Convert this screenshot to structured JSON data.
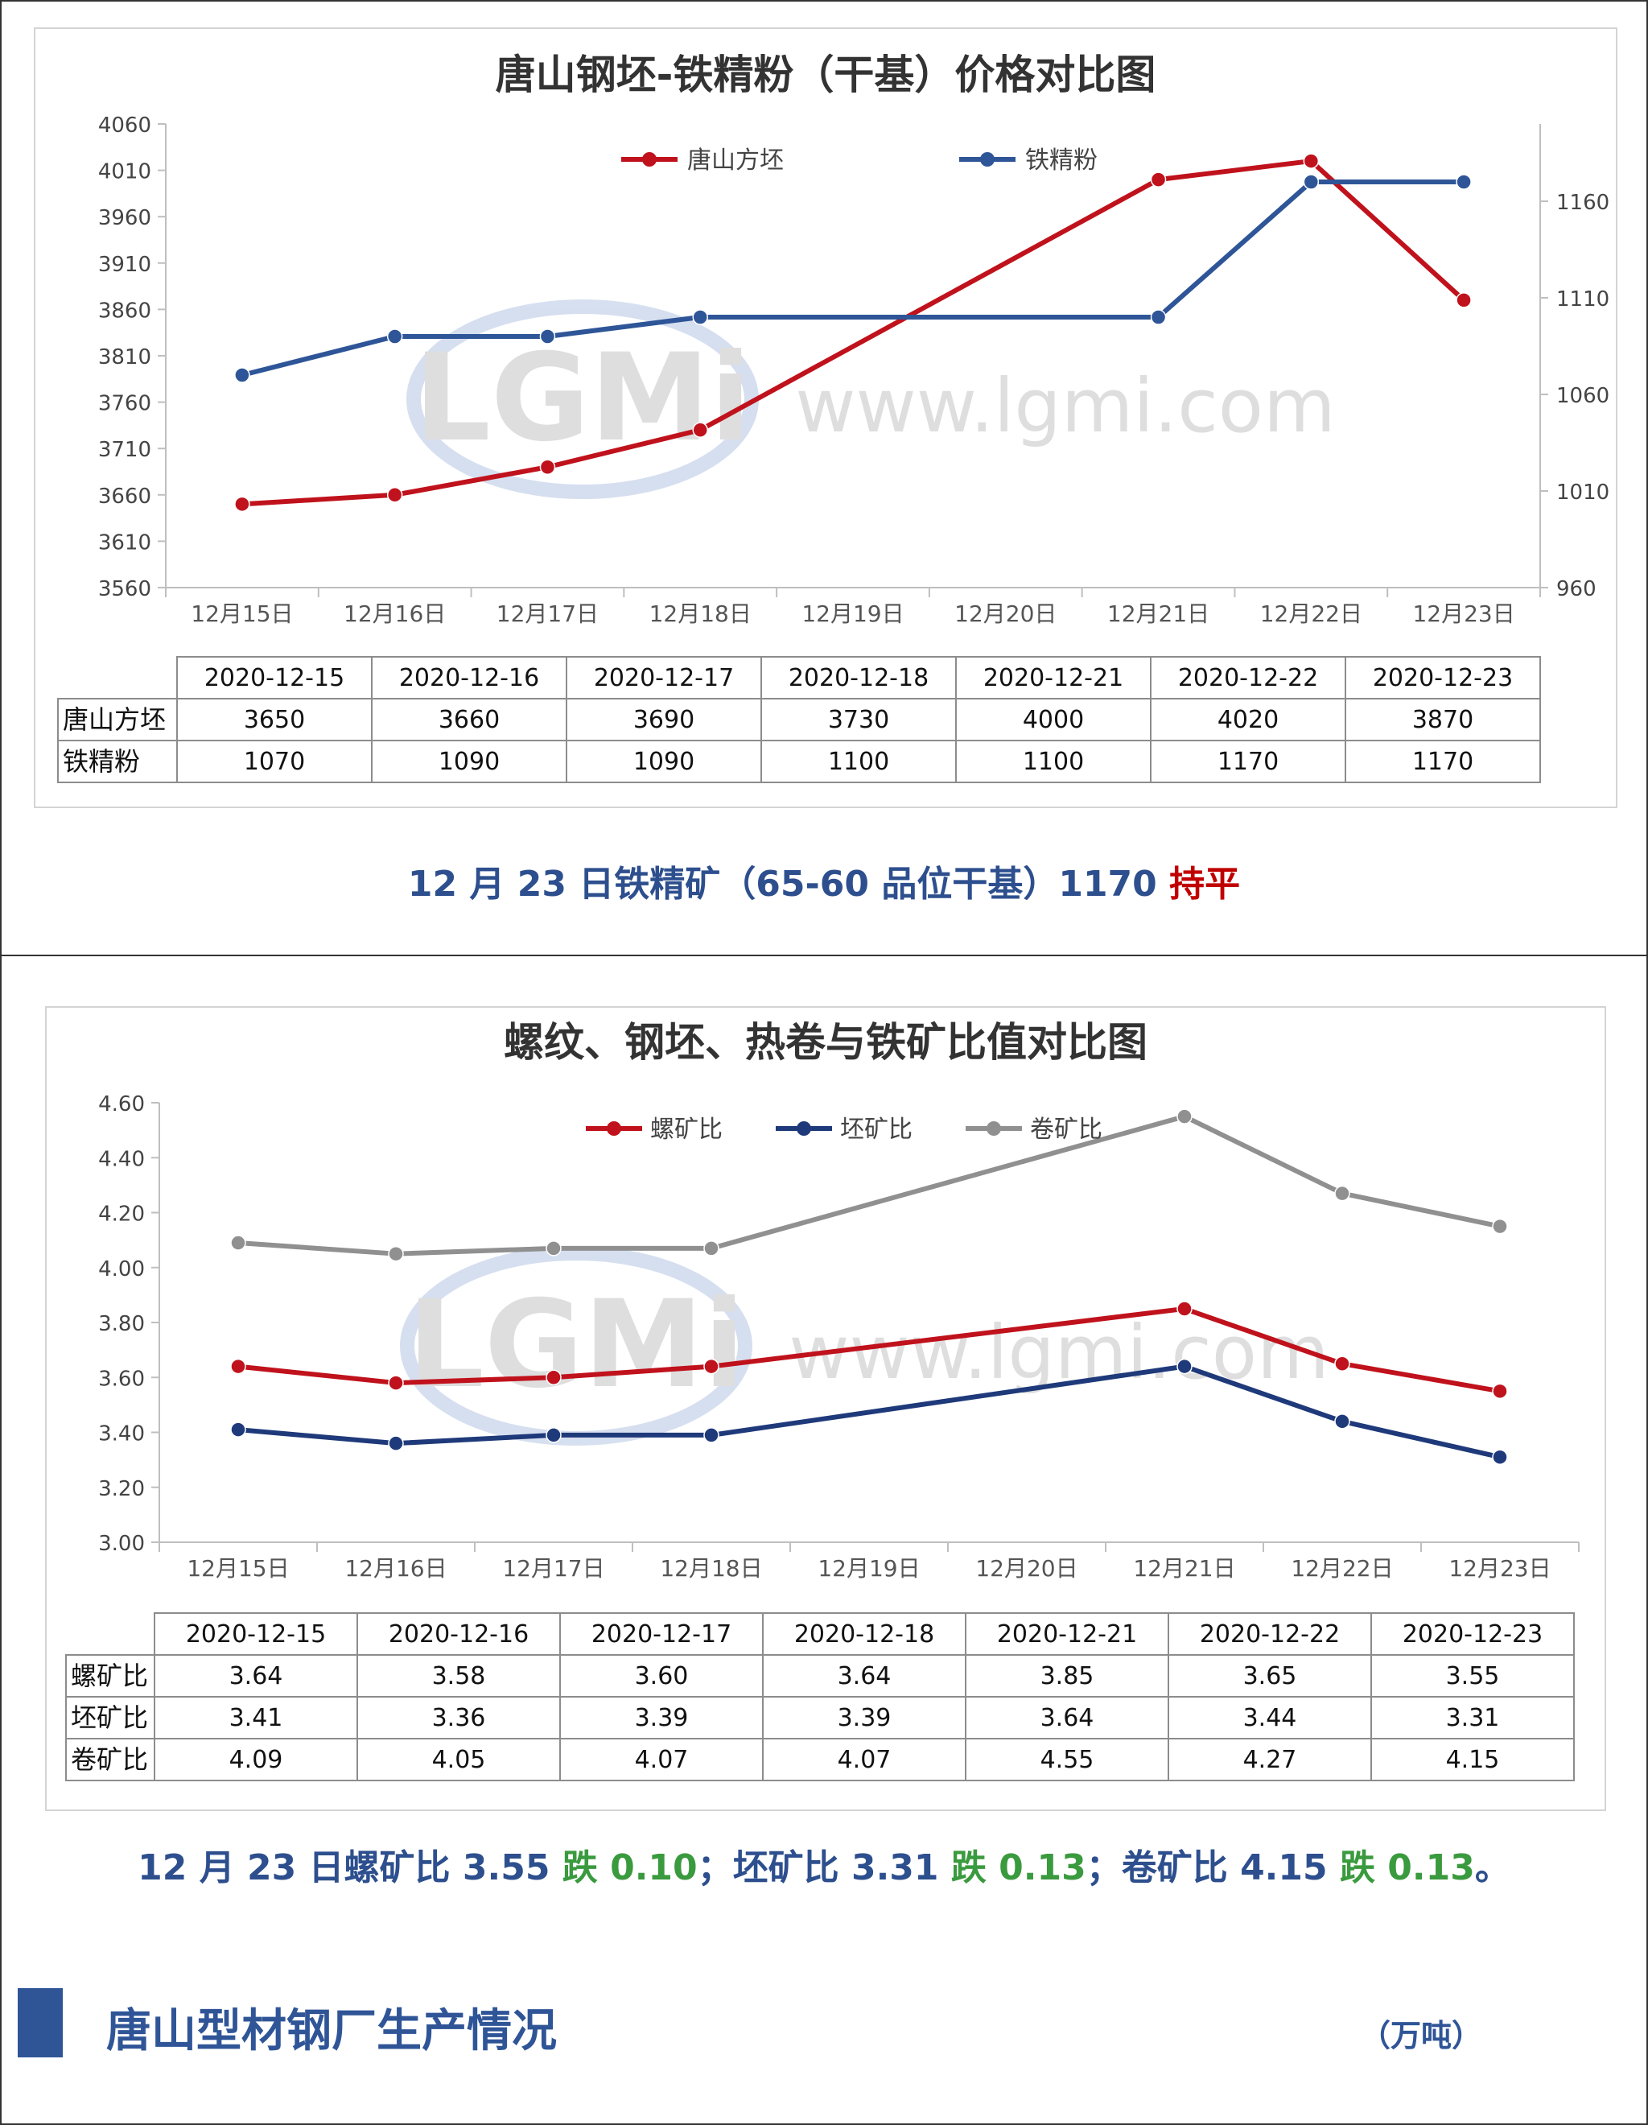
{
  "chart_data": [
    {
      "type": "line",
      "title": "唐山钢坯-铁精粉（干基）价格对比图",
      "categories": [
        "12月15日",
        "12月16日",
        "12月17日",
        "12月18日",
        "12月19日",
        "12月20日",
        "12月21日",
        "12月22日",
        "12月23日"
      ],
      "series": [
        {
          "name": "唐山方坯",
          "axis": "left",
          "color": "#c0121c",
          "points": [
            [
              0,
              3650
            ],
            [
              1,
              3660
            ],
            [
              2,
              3690
            ],
            [
              3,
              3730
            ],
            [
              6,
              4000
            ],
            [
              7,
              4020
            ],
            [
              8,
              3870
            ]
          ]
        },
        {
          "name": "铁精粉",
          "axis": "right",
          "color": "#2e5597",
          "points": [
            [
              0,
              1070
            ],
            [
              1,
              1090
            ],
            [
              2,
              1090
            ],
            [
              3,
              1100
            ],
            [
              6,
              1100
            ],
            [
              7,
              1170
            ],
            [
              8,
              1170
            ]
          ]
        }
      ],
      "y_left": {
        "min": 3560,
        "max": 4060,
        "ticks": [
          4060,
          4010,
          3960,
          3910,
          3860,
          3810,
          3760,
          3710,
          3660,
          3610,
          3560
        ]
      },
      "y_right": {
        "min": 960,
        "max": 1200,
        "ticks": [
          1160,
          1110,
          1060,
          1010,
          960
        ]
      },
      "table": {
        "headers": [
          "2020-12-15",
          "2020-12-16",
          "2020-12-17",
          "2020-12-18",
          "2020-12-21",
          "2020-12-22",
          "2020-12-23"
        ],
        "rows": [
          {
            "label": "唐山方坯",
            "values": [
              "3650",
              "3660",
              "3690",
              "3730",
              "4000",
              "4020",
              "3870"
            ]
          },
          {
            "label": "铁精粉",
            "values": [
              "1070",
              "1090",
              "1090",
              "1100",
              "1100",
              "1170",
              "1170"
            ]
          }
        ]
      },
      "watermark": {
        "logo": "LGMi",
        "url": "www.lgmi.com"
      }
    },
    {
      "type": "line",
      "title": "螺纹、钢坯、热卷与铁矿比值对比图",
      "categories": [
        "12月15日",
        "12月16日",
        "12月17日",
        "12月18日",
        "12月19日",
        "12月20日",
        "12月21日",
        "12月22日",
        "12月23日"
      ],
      "series": [
        {
          "name": "螺矿比",
          "color": "#c0121c",
          "points": [
            [
              0,
              3.64
            ],
            [
              1,
              3.58
            ],
            [
              2,
              3.6
            ],
            [
              3,
              3.64
            ],
            [
              6,
              3.85
            ],
            [
              7,
              3.65
            ],
            [
              8,
              3.55
            ]
          ]
        },
        {
          "name": "坯矿比",
          "color": "#1f3a7a",
          "points": [
            [
              0,
              3.41
            ],
            [
              1,
              3.36
            ],
            [
              2,
              3.39
            ],
            [
              3,
              3.39
            ],
            [
              6,
              3.64
            ],
            [
              7,
              3.44
            ],
            [
              8,
              3.31
            ]
          ]
        },
        {
          "name": "卷矿比",
          "color": "#909090",
          "points": [
            [
              0,
              4.09
            ],
            [
              1,
              4.05
            ],
            [
              2,
              4.07
            ],
            [
              3,
              4.07
            ],
            [
              6,
              4.55
            ],
            [
              7,
              4.27
            ],
            [
              8,
              4.15
            ]
          ]
        }
      ],
      "y_left": {
        "min": 3.0,
        "max": 4.6,
        "ticks": [
          "4.60",
          "4.40",
          "4.20",
          "4.00",
          "3.80",
          "3.60",
          "3.40",
          "3.20",
          "3.00"
        ]
      },
      "table": {
        "headers": [
          "2020-12-15",
          "2020-12-16",
          "2020-12-17",
          "2020-12-18",
          "2020-12-21",
          "2020-12-22",
          "2020-12-23"
        ],
        "rows": [
          {
            "label": "螺矿比",
            "values": [
              "3.64",
              "3.58",
              "3.60",
              "3.64",
              "3.85",
              "3.65",
              "3.55"
            ]
          },
          {
            "label": "坯矿比",
            "values": [
              "3.41",
              "3.36",
              "3.39",
              "3.39",
              "3.64",
              "3.44",
              "3.31"
            ]
          },
          {
            "label": "卷矿比",
            "values": [
              "4.09",
              "4.05",
              "4.07",
              "4.07",
              "4.55",
              "4.27",
              "4.15"
            ]
          }
        ]
      },
      "watermark": {
        "logo": "LGMi",
        "url": "www.lgmi.com"
      }
    }
  ],
  "summary1": {
    "main": "12 月 23 日铁精矿（65-60 品位干基）1170 ",
    "change": "持平"
  },
  "summary2": {
    "p1": "12 月 23 日螺矿比 3.55 ",
    "d1": "跌 0.10",
    "p2": "；坯矿比 3.31 ",
    "d2": "跌 0.13",
    "p3": "；卷矿比 4.15 ",
    "d3": "跌 0.13",
    "p4": "。"
  },
  "section": {
    "title": "唐山型材钢厂生产情况",
    "unit": "（万吨）"
  }
}
